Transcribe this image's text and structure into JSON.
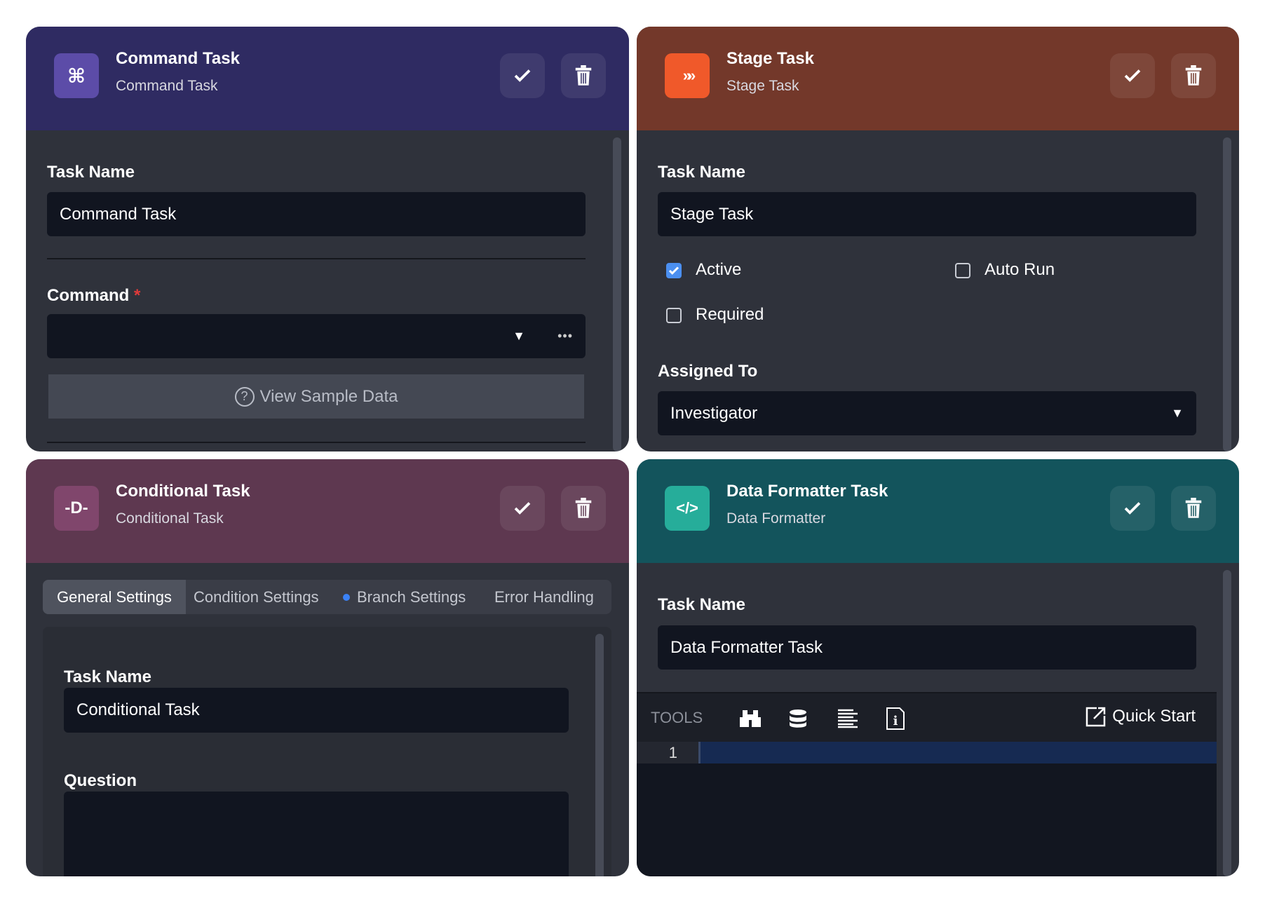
{
  "cards": {
    "command": {
      "title": "Command Task",
      "subtitle": "Command Task",
      "icon": "command-icon",
      "header_color": "#2f2b62",
      "icon_color": "#5c4ca8",
      "task_name_label": "Task Name",
      "task_name_value": "Command Task",
      "command_label": "Command",
      "required_mark": "*",
      "command_value": "",
      "more_label": "•••",
      "sample_button": "View Sample Data"
    },
    "stage": {
      "title": "Stage Task",
      "subtitle": "Stage Task",
      "icon": "double-chevron-icon",
      "header_color": "#73382a",
      "icon_color": "#f0592a",
      "task_name_label": "Task Name",
      "task_name_value": "Stage Task",
      "checkboxes": [
        {
          "label": "Active",
          "checked": true
        },
        {
          "label": "Auto Run",
          "checked": false
        },
        {
          "label": "Required",
          "checked": false
        }
      ],
      "assigned_label": "Assigned To",
      "assigned_value": "Investigator"
    },
    "conditional": {
      "title": "Conditional Task",
      "subtitle": "Conditional Task",
      "icon": "branch-icon",
      "header_color": "#5e3850",
      "icon_color": "#80466c",
      "tabs": [
        {
          "label": "General Settings",
          "active": true
        },
        {
          "label": "Condition Settings"
        },
        {
          "label": "Branch Settings",
          "dot": "#3b82f6"
        },
        {
          "label": "Error Handling"
        }
      ],
      "task_name_label": "Task Name",
      "task_name_value": "Conditional Task",
      "question_label": "Question",
      "question_value": ""
    },
    "formatter": {
      "title": "Data Formatter Task",
      "subtitle": "Data Formatter",
      "icon": "code-icon",
      "header_color": "#13545c",
      "icon_color": "#26ad9a",
      "task_name_label": "Task Name",
      "task_name_value": "Data Formatter Task",
      "tools_label": "TOOLS",
      "quick_start": "Quick Start",
      "line_number": "1"
    }
  }
}
